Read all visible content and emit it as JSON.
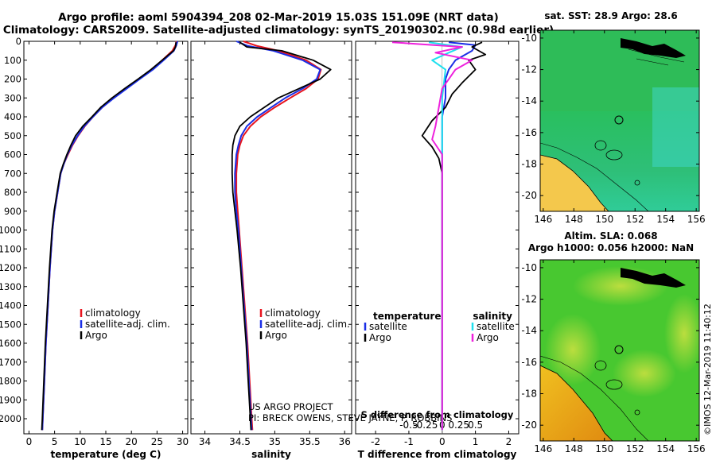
{
  "header": {
    "line1": "Argo profile: aoml 5904394_208 02-Mar-2019 15.03S 151.09E (NRT data)",
    "line2": "Climatology: CARS2009. Satellite-adjusted climatology: synTS_20190302.nc (0.98d earlier)"
  },
  "colors": {
    "climatology": "#e8141e",
    "satellite_adj": "#1a2ee6",
    "argo": "#000000",
    "sat_temp": "#1a2ee6",
    "sat_sal": "#20e0ee",
    "argo_sal": "#ee22dd"
  },
  "depth_ticks": [
    0,
    100,
    200,
    300,
    400,
    500,
    600,
    700,
    800,
    900,
    1000,
    1100,
    1200,
    1300,
    1400,
    1500,
    1600,
    1700,
    1800,
    1900,
    2000
  ],
  "chart_data": [
    {
      "type": "line",
      "name": "temperature",
      "xlabel": "temperature (deg C)",
      "ylabel": "depth",
      "xlim": [
        -1,
        31
      ],
      "ylim": [
        2080,
        0
      ],
      "xticks": [
        0,
        5,
        10,
        15,
        20,
        25,
        30
      ],
      "legend": {
        "placement": "lower-center",
        "items": [
          "climatology",
          "satellite-adj. clim.",
          "Argo"
        ]
      },
      "series": [
        {
          "name": "climatology",
          "color": "#e8141e",
          "points": [
            [
              28.8,
              0
            ],
            [
              28.6,
              20
            ],
            [
              28.0,
              50
            ],
            [
              26.0,
              100
            ],
            [
              24.0,
              150
            ],
            [
              21.5,
              200
            ],
            [
              19.0,
              250
            ],
            [
              16.5,
              300
            ],
            [
              14.3,
              350
            ],
            [
              12.5,
              400
            ],
            [
              10.9,
              450
            ],
            [
              9.6,
              500
            ],
            [
              8.5,
              550
            ],
            [
              7.6,
              600
            ],
            [
              6.8,
              650
            ],
            [
              6.2,
              700
            ],
            [
              5.6,
              800
            ],
            [
              5.0,
              900
            ],
            [
              4.6,
              1000
            ],
            [
              4.1,
              1200
            ],
            [
              3.7,
              1400
            ],
            [
              3.3,
              1600
            ],
            [
              3.0,
              1800
            ],
            [
              2.7,
              2000
            ],
            [
              2.6,
              2060
            ]
          ]
        },
        {
          "name": "satellite-adj. clim.",
          "color": "#1a2ee6",
          "points": [
            [
              29.0,
              0
            ],
            [
              28.8,
              20
            ],
            [
              28.3,
              50
            ],
            [
              26.3,
              100
            ],
            [
              24.2,
              150
            ],
            [
              21.6,
              200
            ],
            [
              19.1,
              250
            ],
            [
              16.6,
              300
            ],
            [
              14.3,
              350
            ],
            [
              12.5,
              400
            ],
            [
              10.8,
              450
            ],
            [
              9.5,
              500
            ],
            [
              8.4,
              550
            ],
            [
              7.5,
              600
            ],
            [
              6.8,
              650
            ],
            [
              6.2,
              700
            ],
            [
              5.6,
              800
            ],
            [
              5.0,
              900
            ],
            [
              4.6,
              1000
            ],
            [
              4.1,
              1200
            ],
            [
              3.7,
              1400
            ],
            [
              3.3,
              1600
            ],
            [
              3.0,
              1800
            ],
            [
              2.7,
              2000
            ],
            [
              2.6,
              2060
            ]
          ]
        },
        {
          "name": "Argo",
          "color": "#000000",
          "points": [
            [
              28.7,
              5
            ],
            [
              28.6,
              30
            ],
            [
              28.2,
              50
            ],
            [
              26.0,
              100
            ],
            [
              23.8,
              150
            ],
            [
              21.3,
              200
            ],
            [
              18.7,
              250
            ],
            [
              16.2,
              300
            ],
            [
              14.0,
              350
            ],
            [
              12.3,
              400
            ],
            [
              10.5,
              450
            ],
            [
              9.1,
              500
            ],
            [
              8.2,
              550
            ],
            [
              7.4,
              600
            ],
            [
              6.7,
              650
            ],
            [
              6.1,
              700
            ],
            [
              5.5,
              800
            ],
            [
              4.9,
              900
            ],
            [
              4.5,
              1000
            ],
            [
              4.0,
              1200
            ],
            [
              3.6,
              1400
            ],
            [
              3.2,
              1600
            ],
            [
              2.9,
              1800
            ],
            [
              2.6,
              2000
            ],
            [
              2.5,
              2060
            ]
          ]
        }
      ]
    },
    {
      "type": "line",
      "name": "salinity",
      "xlabel": "salinity",
      "ylabel": "depth",
      "xlim": [
        33.8,
        36.1
      ],
      "ylim": [
        2080,
        0
      ],
      "xticks": [
        34,
        34.5,
        35,
        35.5,
        36
      ],
      "legend": {
        "placement": "lower-center",
        "items": [
          "climatology",
          "satellite-adj. clim.",
          "Argo"
        ]
      },
      "series": [
        {
          "name": "climatology",
          "color": "#e8141e",
          "points": [
            [
              34.55,
              0
            ],
            [
              34.75,
              25
            ],
            [
              35.05,
              50
            ],
            [
              35.45,
              100
            ],
            [
              35.66,
              150
            ],
            [
              35.62,
              200
            ],
            [
              35.45,
              250
            ],
            [
              35.22,
              300
            ],
            [
              35.0,
              350
            ],
            [
              34.8,
              400
            ],
            [
              34.65,
              450
            ],
            [
              34.55,
              500
            ],
            [
              34.5,
              550
            ],
            [
              34.47,
              600
            ],
            [
              34.45,
              700
            ],
            [
              34.45,
              800
            ],
            [
              34.47,
              900
            ],
            [
              34.49,
              1000
            ],
            [
              34.53,
              1200
            ],
            [
              34.57,
              1400
            ],
            [
              34.61,
              1600
            ],
            [
              34.64,
              1800
            ],
            [
              34.67,
              2000
            ],
            [
              34.68,
              2060
            ]
          ]
        },
        {
          "name": "satellite-adj. clim.",
          "color": "#1a2ee6",
          "points": [
            [
              34.45,
              0
            ],
            [
              34.62,
              25
            ],
            [
              34.98,
              50
            ],
            [
              35.4,
              100
            ],
            [
              35.65,
              150
            ],
            [
              35.6,
              200
            ],
            [
              35.4,
              250
            ],
            [
              35.15,
              300
            ],
            [
              34.95,
              350
            ],
            [
              34.75,
              400
            ],
            [
              34.6,
              450
            ],
            [
              34.52,
              500
            ],
            [
              34.48,
              550
            ],
            [
              34.45,
              600
            ],
            [
              34.43,
              700
            ],
            [
              34.43,
              800
            ],
            [
              34.45,
              900
            ],
            [
              34.48,
              1000
            ],
            [
              34.52,
              1200
            ],
            [
              34.56,
              1400
            ],
            [
              34.6,
              1600
            ],
            [
              34.63,
              1800
            ],
            [
              34.66,
              2000
            ],
            [
              34.67,
              2060
            ]
          ]
        },
        {
          "name": "Argo",
          "color": "#000000",
          "points": [
            [
              34.5,
              5
            ],
            [
              34.6,
              30
            ],
            [
              35.1,
              50
            ],
            [
              35.55,
              100
            ],
            [
              35.8,
              150
            ],
            [
              35.65,
              200
            ],
            [
              35.35,
              250
            ],
            [
              35.05,
              300
            ],
            [
              34.85,
              350
            ],
            [
              34.65,
              400
            ],
            [
              34.5,
              450
            ],
            [
              34.43,
              500
            ],
            [
              34.4,
              550
            ],
            [
              34.39,
              600
            ],
            [
              34.39,
              700
            ],
            [
              34.4,
              800
            ],
            [
              34.43,
              900
            ],
            [
              34.46,
              1000
            ],
            [
              34.51,
              1200
            ],
            [
              34.55,
              1400
            ],
            [
              34.59,
              1600
            ],
            [
              34.62,
              1800
            ],
            [
              34.65,
              2000
            ],
            [
              34.66,
              2060
            ]
          ]
        }
      ],
      "annotation": [
        "US ARGO PROJECT",
        "PI: BRECK OWENS, STEVE JAYNE, P. ROBBINS"
      ]
    },
    {
      "type": "line",
      "name": "difference from climatology",
      "xlabel": "T difference from climatology",
      "xlabel_top": "S difference from climatology",
      "xlim": [
        -2.6,
        2.3
      ],
      "ylim": [
        2080,
        0
      ],
      "xticks": [
        -2,
        -1,
        0,
        1,
        2
      ],
      "s_ticks": [
        "-0.5",
        "-0.25",
        "0",
        "0.25",
        "0.5"
      ],
      "s_tick_values": [
        -0.5,
        -0.25,
        0,
        0.25,
        0.5
      ],
      "legend": {
        "placement": "lower-center",
        "temperature_title": "temperature",
        "salinity_title": "salinity",
        "temperature_items": [
          "satellite",
          "Argo"
        ],
        "salinity_items": [
          "satellite",
          "Argo"
        ]
      },
      "series": [
        {
          "name": "temperature satellite",
          "color": "#1a2ee6",
          "points": [
            [
              0.2,
              5
            ],
            [
              1.0,
              20
            ],
            [
              0.9,
              50
            ],
            [
              0.4,
              100
            ],
            [
              0.2,
              150
            ],
            [
              0.1,
              200
            ],
            [
              0.1,
              300
            ],
            [
              0.0,
              400
            ],
            [
              0.0,
              600
            ],
            [
              0.0,
              800
            ],
            [
              0.0,
              1000
            ],
            [
              0.0,
              2060
            ]
          ]
        },
        {
          "name": "temperature Argo",
          "color": "#000000",
          "points": [
            [
              1.2,
              5
            ],
            [
              0.9,
              30
            ],
            [
              1.3,
              70
            ],
            [
              0.8,
              100
            ],
            [
              1.0,
              150
            ],
            [
              0.6,
              220
            ],
            [
              0.3,
              280
            ],
            [
              0.1,
              350
            ],
            [
              -0.3,
              420
            ],
            [
              -0.6,
              500
            ],
            [
              -0.3,
              560
            ],
            [
              -0.1,
              620
            ],
            [
              0.0,
              700
            ],
            [
              0.0,
              800
            ],
            [
              0.0,
              1000
            ],
            [
              0.0,
              2060
            ]
          ]
        },
        {
          "name": "salinity satellite",
          "color": "#20e0ee",
          "points": [
            [
              -0.4,
              5
            ],
            [
              0.6,
              30
            ],
            [
              0.2,
              60
            ],
            [
              -0.3,
              100
            ],
            [
              0.1,
              150
            ],
            [
              0.0,
              300
            ],
            [
              0.0,
              600
            ],
            [
              0.0,
              1000
            ],
            [
              0.0,
              2060
            ]
          ]
        },
        {
          "name": "salinity Argo",
          "color": "#ee22dd",
          "points": [
            [
              -1.5,
              5
            ],
            [
              0.6,
              30
            ],
            [
              -0.2,
              60
            ],
            [
              0.9,
              100
            ],
            [
              0.4,
              150
            ],
            [
              0.0,
              250
            ],
            [
              -0.2,
              450
            ],
            [
              -0.3,
              520
            ],
            [
              0.0,
              600
            ],
            [
              0.0,
              800
            ],
            [
              0.0,
              2060
            ]
          ]
        }
      ]
    },
    {
      "type": "heatmap",
      "name": "satellite SST map",
      "title": "sat. SST: 28.9 Argo: 28.6",
      "xlim": [
        145.8,
        156.2
      ],
      "ylim": [
        -21,
        -9.5
      ],
      "xticks": [
        146,
        148,
        150,
        152,
        154,
        156
      ],
      "yticks": [
        -10,
        -12,
        -14,
        -16,
        -18,
        -20
      ],
      "profile_location": [
        151.09,
        -15.03
      ]
    },
    {
      "type": "heatmap",
      "name": "altimetry SLA map",
      "title_line1": "Altim. SLA: 0.068",
      "title_line2": "Argo h1000: 0.056 h2000: NaN",
      "xlim": [
        145.8,
        156.2
      ],
      "ylim": [
        -21,
        -9.5
      ],
      "xticks": [
        146,
        148,
        150,
        152,
        154,
        156
      ],
      "yticks": [
        -10,
        -12,
        -14,
        -16,
        -18,
        -20
      ],
      "profile_location": [
        151.09,
        -15.03
      ]
    }
  ],
  "credit": "©IMOS 12-Mar-2019 11:40:12"
}
